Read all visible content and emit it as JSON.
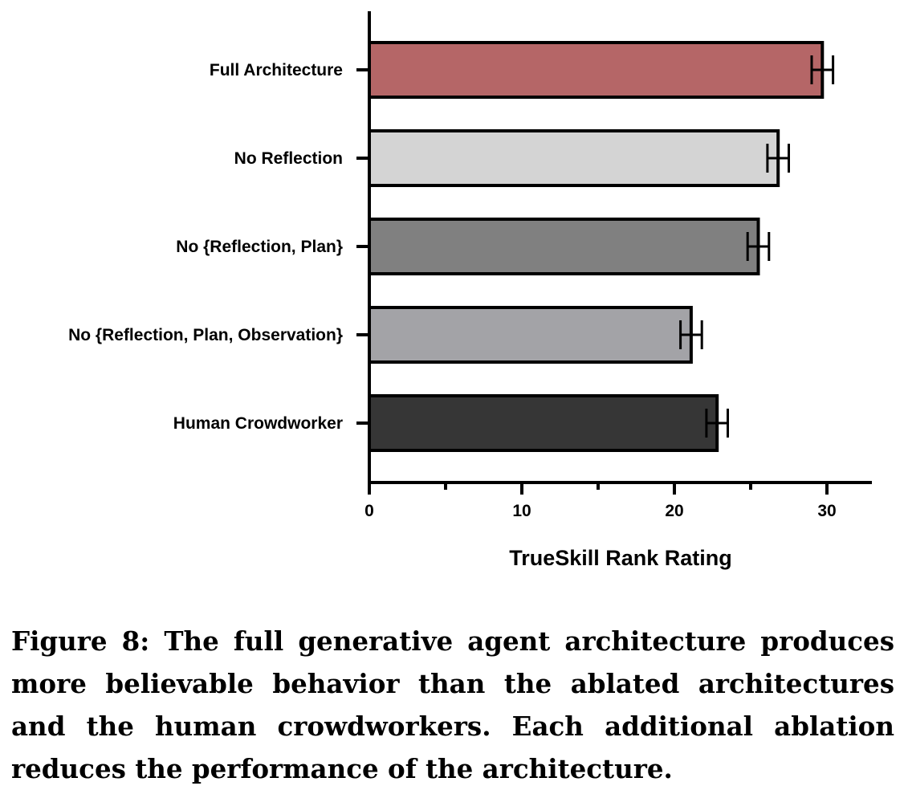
{
  "chart_data": {
    "type": "bar",
    "orientation": "horizontal",
    "categories": [
      "Full Architecture",
      "No Reflection",
      "No {Reflection, Plan}",
      "No {Reflection, Plan, Observation}",
      "Human Crowdworker"
    ],
    "values": [
      29.7,
      26.8,
      25.5,
      21.1,
      22.8
    ],
    "error": [
      0.7,
      0.7,
      0.7,
      0.7,
      0.7
    ],
    "colors": [
      "#b56667",
      "#d4d4d4",
      "#808080",
      "#a3a3a7",
      "#363636"
    ],
    "xlabel": "TrueSkill Rank Rating",
    "xlim": [
      0,
      33
    ],
    "xticks": [
      "0",
      "10",
      "20",
      "30"
    ],
    "xtick_values": [
      0,
      10,
      20,
      30
    ],
    "minor_xtick_values": [
      5,
      15,
      25
    ]
  },
  "caption": "Figure 8: The full generative agent architecture produces more believable behavior than the ablated architectures and the human crowdworkers. Each additional ablation reduces the performance of the architecture."
}
